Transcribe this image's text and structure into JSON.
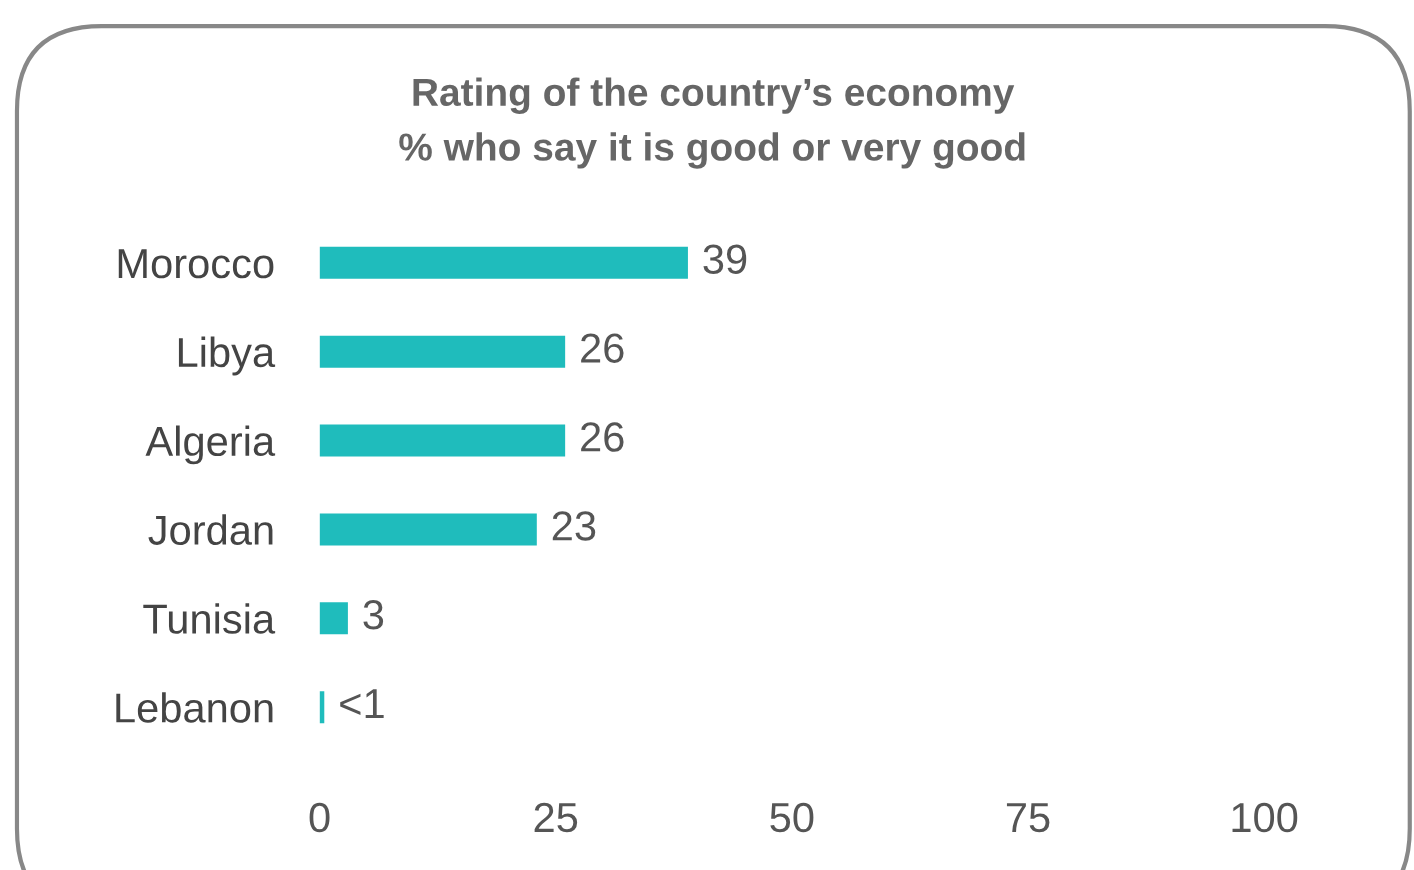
{
  "chart_data": {
    "type": "bar",
    "orientation": "horizontal",
    "title": "Rating of the country’s economy",
    "subtitle": "% who say it is good or very good",
    "categories": [
      "Morocco",
      "Libya",
      "Algeria",
      "Jordan",
      "Tunisia",
      "Lebanon"
    ],
    "values": [
      39,
      26,
      26,
      23,
      3,
      0.5
    ],
    "value_labels": [
      "39",
      "26",
      "26",
      "23",
      "3",
      "<1"
    ],
    "color": "#1fbcbc",
    "xlim": [
      0,
      100
    ],
    "xticks": [
      0,
      25,
      50,
      75,
      100
    ],
    "grid": false,
    "legend": false
  }
}
